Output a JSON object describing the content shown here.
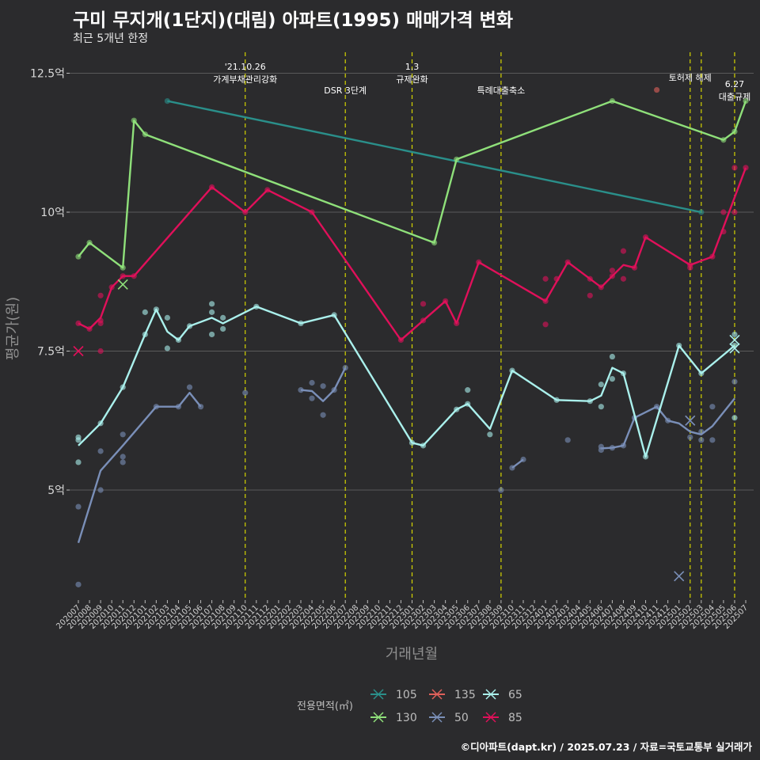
{
  "title": "구미 무지개(1단지)(대림) 아파트(1995) 매매가격 변화",
  "subtitle": "최근 5개년 한정",
  "footer": "©디아파트(dapt.kr) / 2025.07.23 / 자료=국토교통부 실거래가",
  "colors": {
    "background": "#2b2b2d",
    "grid": "#5a5a5a",
    "event_line": "#d4d400",
    "105": "#2a8f8a",
    "130": "#8fe07a",
    "135": "#e0605a",
    "50": "#7a8fb8",
    "65": "#aaf0ec",
    "85": "#e0105a"
  },
  "chart_data": {
    "type": "line",
    "xlabel": "거래년월",
    "ylabel": "평균가(원)",
    "ylim": [
      3.1,
      13.0
    ],
    "yticks": [
      5,
      7.5,
      10,
      12.5
    ],
    "ytick_labels": [
      "5억",
      "7.5억",
      "10억",
      "12.5억"
    ],
    "categories": [
      "202007",
      "202008",
      "202009",
      "202010",
      "202011",
      "202012",
      "202101",
      "202102",
      "202103",
      "202104",
      "202105",
      "202106",
      "202107",
      "202108",
      "202109",
      "202110",
      "202111",
      "202112",
      "202201",
      "202202",
      "202203",
      "202204",
      "202205",
      "202206",
      "202207",
      "202208",
      "202209",
      "202210",
      "202211",
      "202212",
      "202301",
      "202302",
      "202303",
      "202304",
      "202305",
      "202306",
      "202307",
      "202308",
      "202309",
      "202310",
      "202311",
      "202312",
      "202401",
      "202402",
      "202403",
      "202404",
      "202405",
      "202406",
      "202407",
      "202408",
      "202409",
      "202410",
      "202411",
      "202412",
      "202501",
      "202502",
      "202503",
      "202504",
      "202505",
      "202506",
      "202507"
    ],
    "events": [
      {
        "x": "202110",
        "label": "'21.10.26\n가계부채관리강화"
      },
      {
        "x": "202207",
        "label": "DSR 3단계"
      },
      {
        "x": "202301",
        "label": "1.3\n규제완화"
      },
      {
        "x": "202309",
        "label": "특례대출축소"
      },
      {
        "x": "202502",
        "label": "토허제 해제"
      },
      {
        "x": "202503",
        "label": ""
      },
      {
        "x": "202506",
        "label": "6.27\n대출규제"
      }
    ],
    "legend_title": "전용면적(㎡)",
    "legend_order": [
      "105",
      "135",
      "65",
      "130",
      "50",
      "85"
    ],
    "series": [
      {
        "name": "105",
        "line": [
          [
            "202103",
            12.0
          ],
          [
            "202503",
            10.0
          ]
        ],
        "points": [
          [
            "202103",
            12.0
          ],
          [
            "202503",
            10.0
          ]
        ],
        "cancelled": []
      },
      {
        "name": "130",
        "line": [
          [
            "202007",
            9.2
          ],
          [
            "202008",
            9.45
          ],
          [
            "202011",
            9.0
          ],
          [
            "202012",
            11.65
          ],
          [
            "202101",
            11.4
          ],
          [
            "202303",
            9.45
          ],
          [
            "202305",
            10.95
          ],
          [
            "202407",
            12.0
          ],
          [
            "202505",
            11.3
          ],
          [
            "202506",
            11.45
          ],
          [
            "202507",
            12.0
          ]
        ],
        "points": [
          [
            "202007",
            9.2
          ],
          [
            "202008",
            9.45
          ],
          [
            "202011",
            9.0
          ],
          [
            "202012",
            11.65
          ],
          [
            "202101",
            11.4
          ],
          [
            "202303",
            9.45
          ],
          [
            "202305",
            10.95
          ],
          [
            "202407",
            12.0
          ],
          [
            "202505",
            11.3
          ],
          [
            "202506",
            11.45
          ],
          [
            "202507",
            12.0
          ]
        ],
        "cancelled": [
          [
            "202011",
            8.7
          ]
        ]
      },
      {
        "name": "135",
        "line": [],
        "points": [
          [
            "202411",
            12.2
          ]
        ],
        "cancelled": []
      },
      {
        "name": "50",
        "line": [
          [
            "202007",
            4.05
          ],
          [
            "202009",
            5.35
          ],
          [
            "202011",
            5.8
          ],
          [
            "202102",
            6.5
          ],
          [
            "202104",
            6.5
          ],
          [
            "202105",
            6.75
          ],
          [
            "202106",
            6.5
          ]
        ],
        "line2": [
          [
            "202203",
            6.8
          ],
          [
            "202204",
            6.78
          ],
          [
            "202205",
            6.6
          ],
          [
            "202206",
            6.8
          ],
          [
            "202207",
            7.2
          ]
        ],
        "line3": [
          [
            "202310",
            5.4
          ],
          [
            "202311",
            5.55
          ]
        ],
        "line4": [
          [
            "202406",
            5.75
          ],
          [
            "202407",
            5.76
          ],
          [
            "202408",
            5.8
          ],
          [
            "202409",
            6.3
          ],
          [
            "202411",
            6.5
          ],
          [
            "202412",
            6.25
          ],
          [
            "202501",
            6.2
          ],
          [
            "202502",
            6.05
          ],
          [
            "202503",
            6.0
          ],
          [
            "202504",
            6.15
          ],
          [
            "202506",
            6.65
          ]
        ],
        "points": [
          [
            "202007",
            4.7
          ],
          [
            "202007",
            3.3
          ],
          [
            "202009",
            5.7
          ],
          [
            "202009",
            5.0
          ],
          [
            "202011",
            6.0
          ],
          [
            "202011",
            5.6
          ],
          [
            "202011",
            5.5
          ],
          [
            "202102",
            6.5
          ],
          [
            "202104",
            6.5
          ],
          [
            "202105",
            6.85
          ],
          [
            "202106",
            6.5
          ],
          [
            "202110",
            6.75
          ],
          [
            "202203",
            6.8
          ],
          [
            "202204",
            6.93
          ],
          [
            "202204",
            6.65
          ],
          [
            "202205",
            6.87
          ],
          [
            "202205",
            6.35
          ],
          [
            "202206",
            6.8
          ],
          [
            "202207",
            7.2
          ],
          [
            "202309",
            5.0
          ],
          [
            "202310",
            5.4
          ],
          [
            "202311",
            5.55
          ],
          [
            "202403",
            5.9
          ],
          [
            "202406",
            5.72
          ],
          [
            "202406",
            5.78
          ],
          [
            "202407",
            5.76
          ],
          [
            "202408",
            5.8
          ],
          [
            "202409",
            6.3
          ],
          [
            "202411",
            6.5
          ],
          [
            "202412",
            6.25
          ],
          [
            "202502",
            5.95
          ],
          [
            "202503",
            6.05
          ],
          [
            "202503",
            5.9
          ],
          [
            "202504",
            5.9
          ],
          [
            "202504",
            6.5
          ],
          [
            "202506",
            6.95
          ]
        ],
        "cancelled": [
          [
            "202501",
            3.45
          ],
          [
            "202502",
            6.25
          ]
        ]
      },
      {
        "name": "65",
        "line": [
          [
            "202007",
            5.8
          ],
          [
            "202009",
            6.2
          ],
          [
            "202011",
            6.85
          ],
          [
            "202101",
            7.8
          ],
          [
            "202102",
            8.25
          ],
          [
            "202103",
            7.85
          ],
          [
            "202104",
            7.7
          ],
          [
            "202105",
            7.95
          ],
          [
            "202107",
            8.1
          ],
          [
            "202108",
            8.0
          ],
          [
            "202111",
            8.3
          ],
          [
            "202203",
            8.0
          ],
          [
            "202206",
            8.15
          ],
          [
            "202301",
            5.85
          ],
          [
            "202302",
            5.8
          ],
          [
            "202305",
            6.45
          ],
          [
            "202306",
            6.55
          ],
          [
            "202308",
            6.1
          ],
          [
            "202310",
            7.15
          ],
          [
            "202402",
            6.62
          ],
          [
            "202405",
            6.6
          ],
          [
            "202406",
            6.7
          ],
          [
            "202407",
            7.2
          ],
          [
            "202408",
            7.1
          ],
          [
            "202410",
            5.6
          ],
          [
            "202501",
            7.6
          ],
          [
            "202503",
            7.1
          ],
          [
            "202506",
            7.6
          ]
        ],
        "points": [
          [
            "202007",
            5.95
          ],
          [
            "202007",
            5.9
          ],
          [
            "202007",
            5.5
          ],
          [
            "202009",
            6.2
          ],
          [
            "202011",
            6.85
          ],
          [
            "202101",
            8.2
          ],
          [
            "202101",
            7.8
          ],
          [
            "202102",
            8.25
          ],
          [
            "202103",
            8.1
          ],
          [
            "202103",
            7.55
          ],
          [
            "202104",
            7.7
          ],
          [
            "202105",
            7.95
          ],
          [
            "202107",
            8.35
          ],
          [
            "202107",
            8.2
          ],
          [
            "202107",
            7.8
          ],
          [
            "202108",
            8.1
          ],
          [
            "202108",
            7.9
          ],
          [
            "202111",
            8.3
          ],
          [
            "202203",
            8.0
          ],
          [
            "202206",
            8.15
          ],
          [
            "202301",
            5.85
          ],
          [
            "202302",
            5.8
          ],
          [
            "202305",
            6.45
          ],
          [
            "202306",
            6.8
          ],
          [
            "202306",
            6.55
          ],
          [
            "202308",
            6.0
          ],
          [
            "202310",
            7.15
          ],
          [
            "202402",
            6.62
          ],
          [
            "202405",
            6.6
          ],
          [
            "202406",
            6.9
          ],
          [
            "202406",
            6.5
          ],
          [
            "202407",
            7.4
          ],
          [
            "202407",
            7.0
          ],
          [
            "202408",
            7.1
          ],
          [
            "202410",
            5.6
          ],
          [
            "202501",
            7.6
          ],
          [
            "202503",
            7.1
          ],
          [
            "202506",
            7.6
          ],
          [
            "202506",
            6.3
          ],
          [
            "202506",
            7.8
          ]
        ],
        "cancelled": [
          [
            "202506",
            7.7
          ],
          [
            "202506",
            7.55
          ]
        ]
      },
      {
        "name": "85",
        "line": [
          [
            "202007",
            8.0
          ],
          [
            "202008",
            7.9
          ],
          [
            "202009",
            8.1
          ],
          [
            "202010",
            8.65
          ],
          [
            "202011",
            8.85
          ],
          [
            "202012",
            8.85
          ],
          [
            "202107",
            10.45
          ],
          [
            "202110",
            10.0
          ],
          [
            "202112",
            10.4
          ],
          [
            "202204",
            10.0
          ],
          [
            "202212",
            7.7
          ],
          [
            "202304",
            8.4
          ],
          [
            "202305",
            8.0
          ],
          [
            "202307",
            9.1
          ],
          [
            "202401",
            8.4
          ],
          [
            "202403",
            9.1
          ],
          [
            "202406",
            8.65
          ],
          [
            "202407",
            8.85
          ],
          [
            "202408",
            9.05
          ],
          [
            "202409",
            9.0
          ],
          [
            "202410",
            9.55
          ],
          [
            "202502",
            9.05
          ],
          [
            "202504",
            9.2
          ],
          [
            "202507",
            10.8
          ]
        ],
        "points": [
          [
            "202007",
            8.0
          ],
          [
            "202008",
            7.9
          ],
          [
            "202009",
            8.5
          ],
          [
            "202009",
            8.05
          ],
          [
            "202009",
            8.0
          ],
          [
            "202009",
            7.5
          ],
          [
            "202010",
            8.65
          ],
          [
            "202011",
            8.85
          ],
          [
            "202012",
            8.85
          ],
          [
            "202107",
            10.45
          ],
          [
            "202110",
            10.0
          ],
          [
            "202112",
            10.4
          ],
          [
            "202204",
            10.0
          ],
          [
            "202212",
            7.7
          ],
          [
            "202302",
            8.35
          ],
          [
            "202302",
            8.05
          ],
          [
            "202304",
            8.4
          ],
          [
            "202305",
            8.0
          ],
          [
            "202307",
            9.1
          ],
          [
            "202401",
            8.8
          ],
          [
            "202401",
            8.4
          ],
          [
            "202401",
            7.98
          ],
          [
            "202402",
            8.8
          ],
          [
            "202403",
            9.1
          ],
          [
            "202405",
            8.8
          ],
          [
            "202405",
            8.5
          ],
          [
            "202406",
            8.65
          ],
          [
            "202407",
            8.95
          ],
          [
            "202407",
            8.85
          ],
          [
            "202408",
            9.3
          ],
          [
            "202408",
            8.8
          ],
          [
            "202409",
            9.0
          ],
          [
            "202410",
            9.55
          ],
          [
            "202502",
            9.05
          ],
          [
            "202502",
            9.0
          ],
          [
            "202504",
            9.2
          ],
          [
            "202505",
            10.0
          ],
          [
            "202505",
            9.65
          ],
          [
            "202506",
            10.8
          ],
          [
            "202506",
            10.0
          ],
          [
            "202507",
            10.8
          ]
        ],
        "cancelled": [
          [
            "202007",
            7.5
          ]
        ]
      }
    ]
  }
}
